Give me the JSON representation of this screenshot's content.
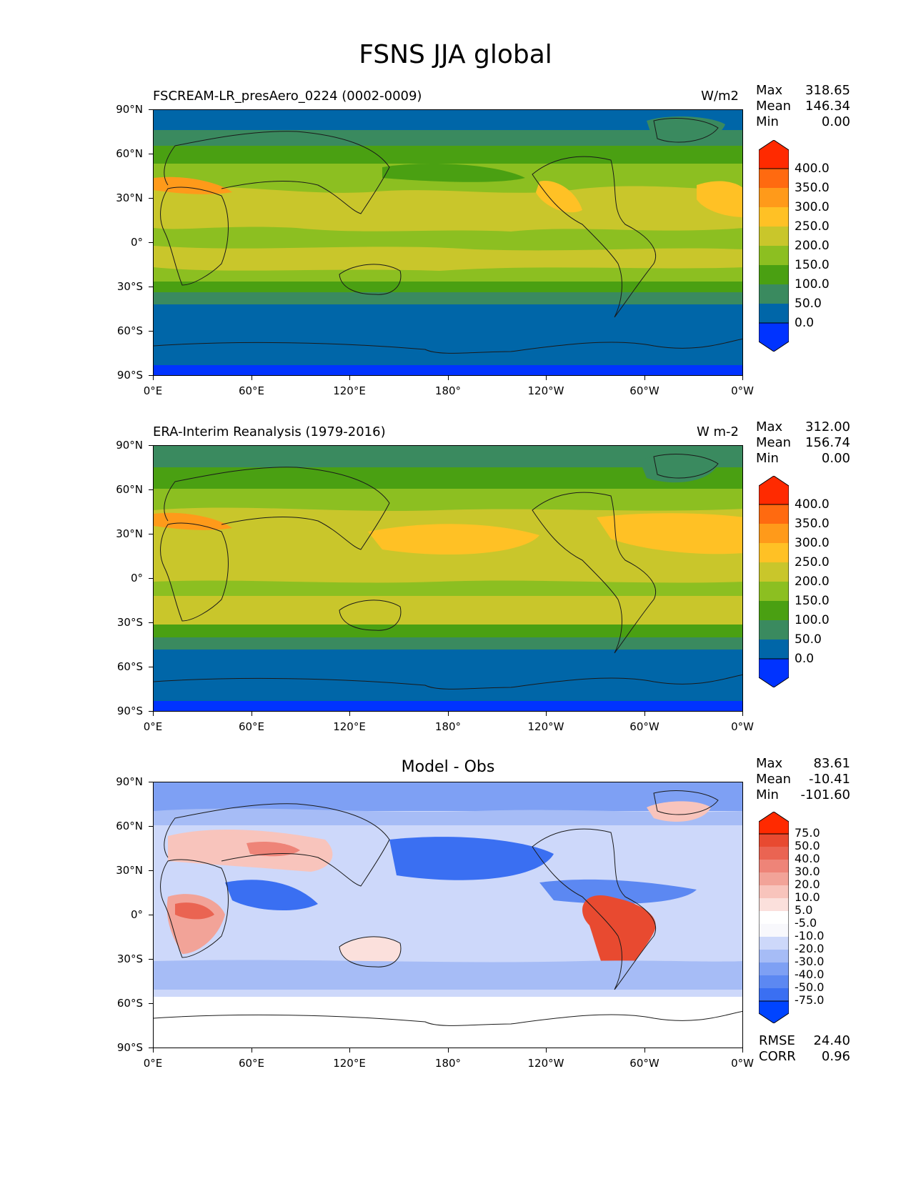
{
  "figure": {
    "title": "FSNS JJA global"
  },
  "axes": {
    "lat_labels": [
      "90°N",
      "60°N",
      "30°N",
      "0°",
      "30°S",
      "60°S",
      "90°S"
    ],
    "lon_labels": [
      "0°E",
      "60°E",
      "120°E",
      "180°",
      "120°W",
      "60°W",
      "0°W"
    ]
  },
  "colors": {
    "fsns_levels": [
      "#0033ff",
      "#0066a8",
      "#3a8a5f",
      "#4aa012",
      "#8cbf21",
      "#c9c62b",
      "#ffc125",
      "#ff9a1a",
      "#ff6a10",
      "#ff2a00"
    ],
    "diff_levels": [
      "#0044ff",
      "#1f5cf0",
      "#3a6ff2",
      "#5c88f2",
      "#7ea0f4",
      "#a6bcf6",
      "#cdd8fa",
      "#f8f8fc",
      "#ffffff",
      "#fbe0dc",
      "#f8c4bc",
      "#f2a398",
      "#ee8478",
      "#ea6452",
      "#e84a30",
      "#ff2a00"
    ]
  },
  "panels": [
    {
      "left_title": "FSCREAM-LR_presAero_0224 (0002-0009)",
      "right_title": "W/m2",
      "stats": {
        "max_label": "Max",
        "max": "318.65",
        "mean_label": "Mean",
        "mean": "146.34",
        "min_label": "Min",
        "min": "0.00"
      },
      "colorbar_labels": [
        "400.0",
        "350.0",
        "300.0",
        "250.0",
        "200.0",
        "150.0",
        "100.0",
        "50.0",
        "0.0"
      ]
    },
    {
      "left_title": "ERA-Interim Reanalysis (1979-2016)",
      "right_title": "W m-2",
      "stats": {
        "max_label": "Max",
        "max": "312.00",
        "mean_label": "Mean",
        "mean": "156.74",
        "min_label": "Min",
        "min": "0.00"
      },
      "colorbar_labels": [
        "400.0",
        "350.0",
        "300.0",
        "250.0",
        "200.0",
        "150.0",
        "100.0",
        "50.0",
        "0.0"
      ]
    },
    {
      "center_title": "Model - Obs",
      "stats": {
        "max_label": "Max",
        "max": "83.61",
        "mean_label": "Mean",
        "mean": "-10.41",
        "min_label": "Min",
        "min": "-101.60"
      },
      "colorbar_labels": [
        "75.0",
        "50.0",
        "40.0",
        "30.0",
        "20.0",
        "10.0",
        "5.0",
        "-5.0",
        "-10.0",
        "-20.0",
        "-30.0",
        "-40.0",
        "-50.0",
        "-75.0"
      ],
      "metrics": {
        "rmse_label": "RMSE",
        "rmse": "24.40",
        "corr_label": "CORR",
        "corr": "0.96"
      }
    }
  ]
}
